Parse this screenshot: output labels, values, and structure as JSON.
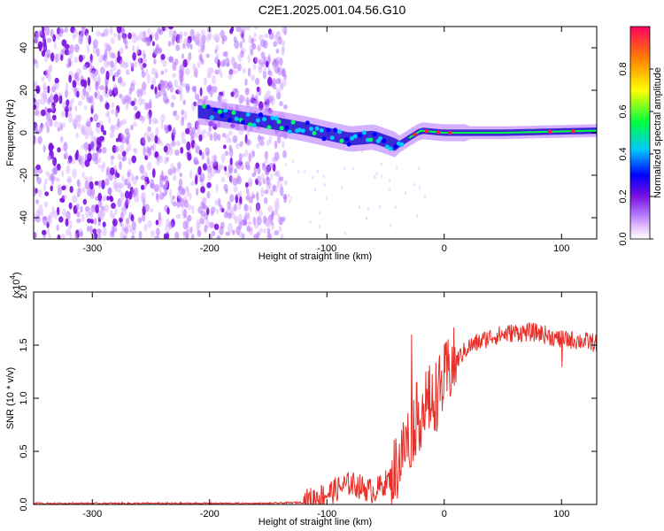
{
  "title": "C2E1.2025.001.04.56.G10",
  "chart_data": [
    {
      "type": "heatmap",
      "xlabel": "Height of straight line (km)",
      "ylabel": "Frequency (Hz)",
      "xlim": [
        -350,
        130
      ],
      "ylim": [
        -50,
        50
      ],
      "xticks": [
        -300,
        -200,
        -100,
        0,
        100
      ],
      "yticks": [
        -40,
        -20,
        0,
        20,
        40
      ],
      "colorbar": {
        "label": "Normalized spectral amplitude",
        "range": [
          0.0,
          1.0
        ],
        "ticks": [
          "0.0",
          "0.2",
          "0.4",
          "0.6",
          "0.8"
        ],
        "colors": [
          "#ffffff",
          "#d8b0ff",
          "#8a2be2",
          "#0000ff",
          "#00c8ff",
          "#00ff40",
          "#ffff00",
          "#ff8000",
          "#ff0060"
        ]
      },
      "features": {
        "noise_region_x": [
          -350,
          -135
        ],
        "ridge": [
          [
            -210,
            10
          ],
          [
            -160,
            6
          ],
          [
            -120,
            2
          ],
          [
            -80,
            -3
          ],
          [
            -60,
            -2
          ],
          [
            -40,
            -6
          ],
          [
            -20,
            1
          ],
          [
            0,
            0
          ],
          [
            50,
            0
          ],
          [
            130,
            1
          ]
        ],
        "peak_points_x": [
          -25,
          -15,
          -5,
          5,
          90,
          110
        ]
      }
    },
    {
      "type": "line",
      "xlabel": "Height of straight line (km)",
      "ylabel": "SNR (10 * v/v)",
      "y_multiplier": "(x10",
      "y_multiplier_exp": "4",
      "xlim": [
        -350,
        130
      ],
      "ylim": [
        0.0,
        2.0
      ],
      "xticks": [
        -300,
        -200,
        -100,
        0,
        100
      ],
      "yticks": [
        "0.0",
        "0.5",
        "1.0",
        "1.5",
        "2.0"
      ],
      "series": [
        {
          "color": "#e8302a",
          "x": [
            -350,
            -300,
            -250,
            -200,
            -150,
            -120,
            -100,
            -80,
            -60,
            -45,
            -35,
            -25,
            -15,
            -5,
            5,
            20,
            40,
            60,
            80,
            100,
            110,
            130
          ],
          "y": [
            0.01,
            0.01,
            0.01,
            0.01,
            0.01,
            0.02,
            0.1,
            0.2,
            0.12,
            0.25,
            0.5,
            0.78,
            0.95,
            1.05,
            1.28,
            1.48,
            1.58,
            1.62,
            1.62,
            1.55,
            1.55,
            1.52
          ]
        }
      ]
    }
  ]
}
